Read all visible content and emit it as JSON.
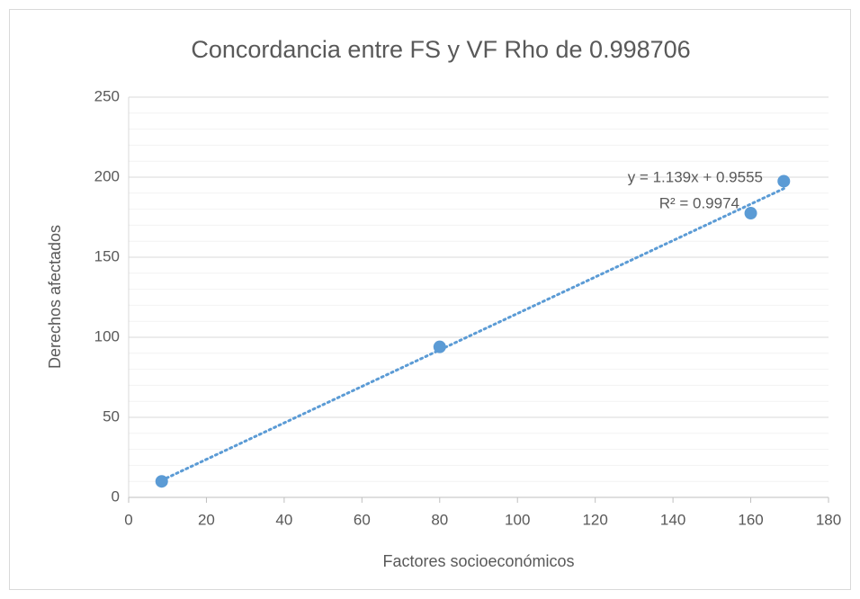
{
  "chart_data": {
    "type": "scatter",
    "title": "Concordancia entre FS y VF Rho de 0.998706",
    "x_label": "Factores socioeconómicos",
    "y_label": "Derechos afectados",
    "x": [
      8.5,
      80,
      160,
      168.5
    ],
    "series": [
      {
        "color": "#5b9bd5",
        "values": [
          10,
          94,
          177.5,
          197.5
        ]
      }
    ],
    "trendline": {
      "slope": 1.139,
      "intercept": 0.9555,
      "color": "#5b9bd5",
      "equation": "y = 1.139x + 0.9555",
      "r2": "R² = 0.9974"
    },
    "xlim": [
      0,
      180
    ],
    "xticks": [
      0,
      20,
      40,
      60,
      80,
      100,
      120,
      140,
      160,
      180
    ],
    "ylim": [
      0,
      250
    ],
    "yticks": [
      0,
      50,
      100,
      150,
      200,
      250
    ],
    "yminorticks": [
      10,
      20,
      30,
      40,
      60,
      70,
      80,
      90,
      110,
      120,
      130,
      140,
      160,
      170,
      180,
      190,
      210,
      220,
      230,
      240
    ],
    "grid": true
  }
}
